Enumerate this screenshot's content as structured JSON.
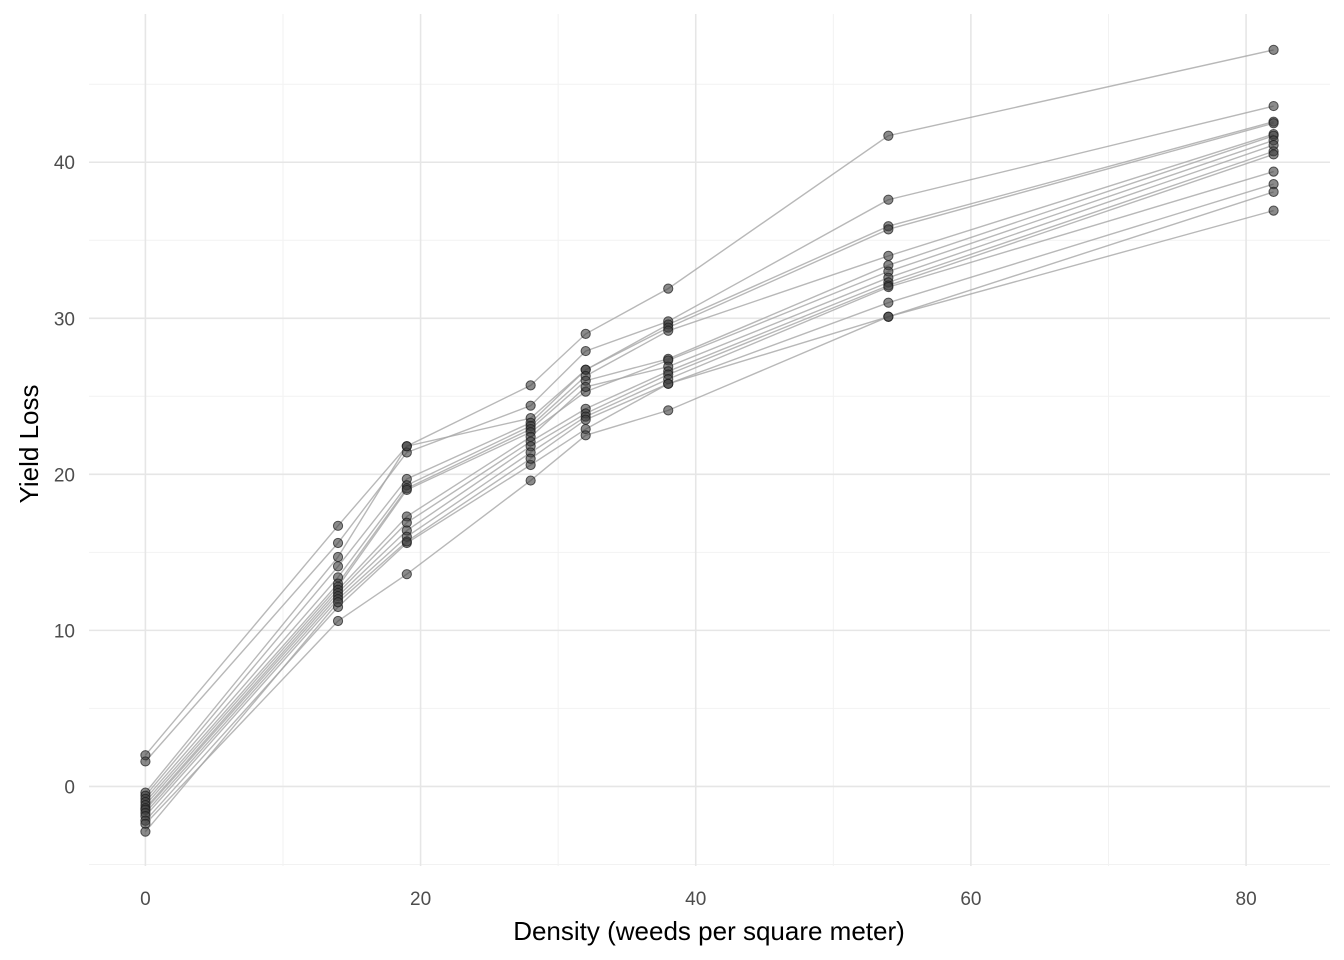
{
  "chart_data": {
    "type": "line",
    "xlabel": "Density (weeds per square meter)",
    "ylabel": "Yield Loss",
    "xlim": [
      -4.1,
      86.1
    ],
    "ylim": [
      -5.1,
      49.5
    ],
    "x_ticks": [
      0,
      20,
      40,
      60,
      80
    ],
    "x_tick_labels": [
      "0",
      "20",
      "40",
      "60",
      "80"
    ],
    "y_ticks": [
      0,
      10,
      20,
      30,
      40
    ],
    "y_tick_labels": [
      "0",
      "10",
      "20",
      "30",
      "40"
    ],
    "grid": true,
    "legend": "none",
    "colors": {
      "line": "#a6a6a6",
      "point_fill": "#3d3d3d",
      "point_stroke": "#1a1a1a"
    },
    "x": [
      0,
      14,
      19,
      28,
      32,
      38,
      54,
      82
    ],
    "series": [
      {
        "values": [
          2.0,
          16.7,
          21.8,
          25.7,
          29.0,
          31.9,
          41.7,
          47.2
        ]
      },
      {
        "values": [
          1.6,
          15.6,
          21.4,
          24.4,
          27.9,
          29.8,
          37.6,
          43.6
        ]
      },
      {
        "values": [
          -0.4,
          14.7,
          21.8,
          23.6,
          26.7,
          29.6,
          35.9,
          42.6
        ]
      },
      {
        "values": [
          -0.6,
          14.1,
          19.7,
          23.3,
          26.7,
          29.4,
          35.7,
          42.5
        ]
      },
      {
        "values": [
          -0.8,
          13.4,
          19.3,
          23.1,
          26.3,
          29.2,
          34.0,
          41.8
        ]
      },
      {
        "values": [
          -1.0,
          13.0,
          19.1,
          22.9,
          26.0,
          27.4,
          33.4,
          41.7
        ]
      },
      {
        "values": [
          -1.2,
          12.8,
          19.0,
          22.7,
          25.3,
          27.3,
          33.0,
          41.4
        ]
      },
      {
        "values": [
          -1.4,
          12.6,
          17.3,
          22.4,
          25.6,
          26.9,
          32.6,
          41.1
        ]
      },
      {
        "values": [
          -1.5,
          12.4,
          16.9,
          22.1,
          24.2,
          26.6,
          32.3,
          40.7
        ]
      },
      {
        "values": [
          -1.7,
          12.2,
          16.4,
          21.8,
          23.9,
          26.4,
          32.1,
          40.5
        ]
      },
      {
        "values": [
          -1.9,
          12.0,
          16.0,
          21.4,
          23.7,
          26.1,
          32.0,
          39.4
        ]
      },
      {
        "values": [
          -2.2,
          11.5,
          15.6,
          20.6,
          22.9,
          25.8,
          31.0,
          38.6
        ]
      },
      {
        "values": [
          -2.4,
          10.6,
          13.6,
          19.6,
          22.5,
          24.1,
          30.1,
          38.1
        ]
      },
      {
        "values": [
          -2.9,
          11.8,
          15.7,
          21.0,
          23.5,
          25.8,
          30.1,
          36.9
        ]
      }
    ]
  }
}
